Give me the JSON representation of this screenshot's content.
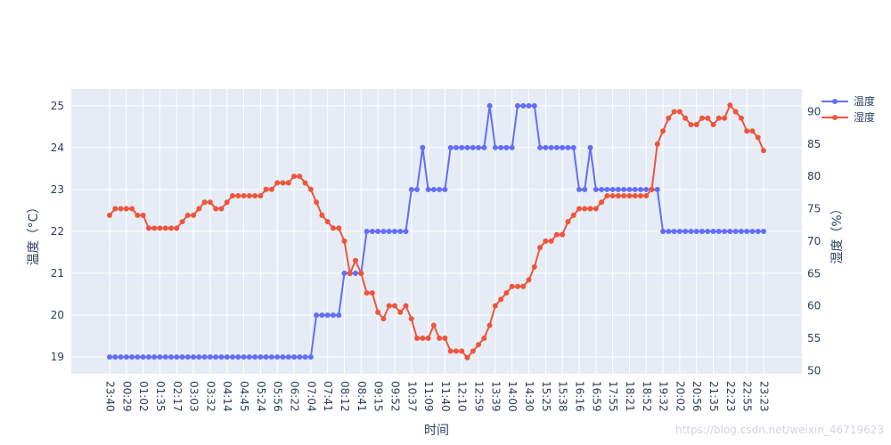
{
  "chart_data": {
    "type": "line",
    "xlabel": "时间",
    "ylabel_left": "温度（°C）",
    "ylabel_right": "湿度（%）",
    "x": [
      "23:40",
      "00:10",
      "00:20",
      "00:29",
      "00:40",
      "00:50",
      "01:02",
      "01:10",
      "01:20",
      "01:35",
      "01:45",
      "01:55",
      "02:17",
      "02:25",
      "02:35",
      "03:03",
      "03:12",
      "03:22",
      "03:32",
      "03:40",
      "03:50",
      "04:14",
      "04:20",
      "04:30",
      "04:45",
      "04:55",
      "05:05",
      "05:24",
      "05:35",
      "05:45",
      "05:56",
      "06:05",
      "06:15",
      "06:22",
      "06:32",
      "06:45",
      "07:04",
      "07:15",
      "07:25",
      "07:41",
      "07:50",
      "08:00",
      "08:12",
      "08:25",
      "08:35",
      "08:41",
      "08:50",
      "09:00",
      "09:15",
      "09:22",
      "09:32",
      "09:52",
      "10:05",
      "10:15",
      "10:37",
      "10:45",
      "10:55",
      "11:09",
      "11:20",
      "11:30",
      "11:40",
      "11:50",
      "12:00",
      "12:10",
      "12:20",
      "12:30",
      "12:59",
      "13:05",
      "13:15",
      "13:39",
      "13:45",
      "13:55",
      "14:00",
      "14:10",
      "14:20",
      "14:30",
      "14:40",
      "14:50",
      "15:25",
      "15:30",
      "15:35",
      "15:38",
      "15:45",
      "15:55",
      "16:16",
      "16:25",
      "16:35",
      "16:59",
      "17:05",
      "17:15",
      "17:55",
      "18:00",
      "18:10",
      "18:21",
      "18:30",
      "18:40",
      "18:52",
      "19:00",
      "19:10",
      "19:32",
      "19:40",
      "19:50",
      "20:02",
      "20:10",
      "20:20",
      "20:56",
      "21:05",
      "21:15",
      "21:35",
      "21:45",
      "21:55",
      "22:23",
      "22:30",
      "22:40",
      "22:55",
      "23:05",
      "23:15",
      "23:23"
    ],
    "x_tick_labels": [
      "23:40",
      "00:29",
      "01:02",
      "01:35",
      "02:17",
      "03:03",
      "03:32",
      "04:14",
      "04:45",
      "05:24",
      "05:56",
      "06:22",
      "07:04",
      "07:41",
      "08:12",
      "08:41",
      "09:15",
      "09:52",
      "10:37",
      "11:09",
      "11:40",
      "12:10",
      "12:59",
      "13:39",
      "14:00",
      "14:30",
      "15:25",
      "15:38",
      "16:16",
      "16:59",
      "17:55",
      "18:21",
      "18:52",
      "19:32",
      "20:02",
      "20:56",
      "21:35",
      "22:23",
      "22:55",
      "23:23"
    ],
    "series": [
      {
        "name": "温度",
        "axis": "left",
        "color": "#636efa",
        "values": [
          19,
          19,
          19,
          19,
          19,
          19,
          19,
          19,
          19,
          19,
          19,
          19,
          19,
          19,
          19,
          19,
          19,
          19,
          19,
          19,
          19,
          19,
          19,
          19,
          19,
          19,
          19,
          19,
          19,
          19,
          19,
          19,
          19,
          19,
          19,
          19,
          19,
          20,
          20,
          20,
          20,
          20,
          21,
          21,
          21,
          21,
          22,
          22,
          22,
          22,
          22,
          22,
          22,
          22,
          23,
          23,
          24,
          23,
          23,
          23,
          23,
          24,
          24,
          24,
          24,
          24,
          24,
          24,
          25,
          24,
          24,
          24,
          24,
          25,
          25,
          25,
          25,
          24,
          24,
          24,
          24,
          24,
          24,
          24,
          23,
          23,
          24,
          23,
          23,
          23,
          23,
          23,
          23,
          23,
          23,
          23,
          23,
          23,
          23,
          22,
          22,
          22,
          22,
          22,
          22,
          22,
          22,
          22,
          22,
          22,
          22,
          22,
          22,
          22,
          22,
          22,
          22,
          22
        ]
      },
      {
        "name": "湿度",
        "axis": "right",
        "color": "#ef553b",
        "values": [
          74,
          75,
          75,
          75,
          75,
          74,
          74,
          72,
          72,
          72,
          72,
          72,
          72,
          73,
          74,
          74,
          75,
          76,
          76,
          75,
          75,
          76,
          77,
          77,
          77,
          77,
          77,
          77,
          78,
          78,
          79,
          79,
          79,
          80,
          80,
          79,
          78,
          76,
          74,
          73,
          72,
          72,
          70,
          65,
          67,
          65,
          62,
          62,
          59,
          58,
          60,
          60,
          59,
          60,
          58,
          55,
          55,
          55,
          57,
          55,
          55,
          53,
          53,
          53,
          52,
          53,
          54,
          55,
          57,
          60,
          61,
          62,
          63,
          63,
          63,
          64,
          66,
          69,
          70,
          70,
          71,
          71,
          73,
          74,
          75,
          75,
          75,
          75,
          76,
          77,
          77,
          77,
          77,
          77,
          77,
          77,
          77,
          78,
          85,
          87,
          89,
          90,
          90,
          89,
          88,
          88,
          89,
          89,
          88,
          89,
          89,
          91,
          90,
          89,
          87,
          87,
          86,
          84
        ]
      }
    ],
    "y_left": {
      "range": [
        18.6,
        25.4
      ],
      "ticks": [
        19,
        20,
        21,
        22,
        23,
        24,
        25
      ]
    },
    "y_right": {
      "range": [
        49.5,
        93.5
      ],
      "ticks": [
        50,
        55,
        60,
        65,
        70,
        75,
        80,
        85,
        90
      ]
    },
    "legend": {
      "placement": "top-right",
      "entries": [
        "温度",
        "湿度"
      ]
    },
    "grid": true,
    "background": "#e5ecf6"
  },
  "watermark": "https://blog.csdn.net/weixin_46719623"
}
